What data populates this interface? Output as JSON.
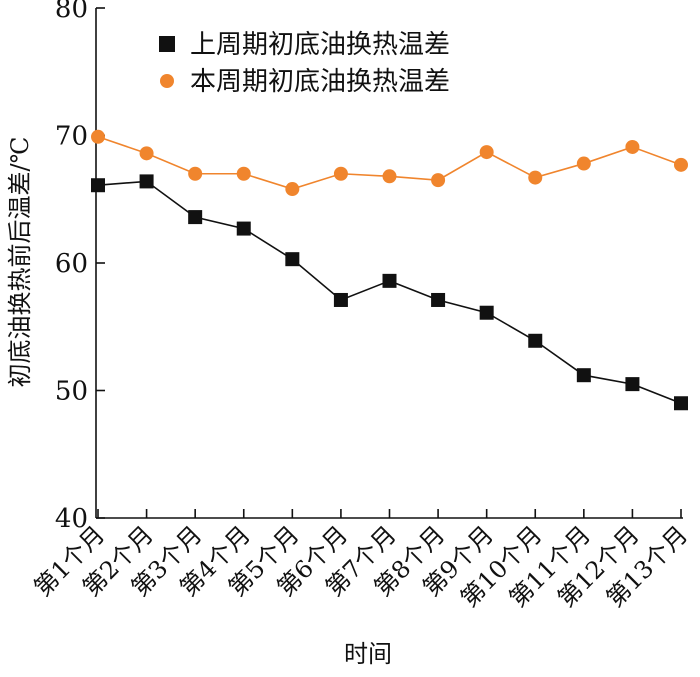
{
  "chart_data": {
    "type": "line",
    "categories": [
      "第1个月",
      "第2个月",
      "第3个月",
      "第4个月",
      "第5个月",
      "第6个月",
      "第7个月",
      "第8个月",
      "第9个月",
      "第10个月",
      "第11个月",
      "第12个月",
      "第13个月"
    ],
    "series": [
      {
        "name": "上周期初底油换热温差",
        "marker": "square",
        "color": "#111111",
        "values": [
          66.1,
          66.4,
          63.6,
          62.7,
          60.3,
          57.1,
          58.6,
          57.1,
          56.1,
          53.9,
          51.2,
          50.5,
          49.0
        ]
      },
      {
        "name": "本周期初底油换热温差",
        "marker": "circle",
        "color": "#f0852d",
        "values": [
          69.9,
          68.6,
          67.0,
          67.0,
          65.8,
          67.0,
          66.8,
          66.5,
          68.7,
          66.7,
          67.8,
          69.1,
          67.7
        ]
      }
    ],
    "xlabel": "时间",
    "ylabel": "初底油换热前后温差/℃",
    "ylim": [
      40,
      80
    ],
    "yticks": [
      40,
      50,
      60,
      70,
      80
    ],
    "legend": "top-left",
    "grid": false
  }
}
